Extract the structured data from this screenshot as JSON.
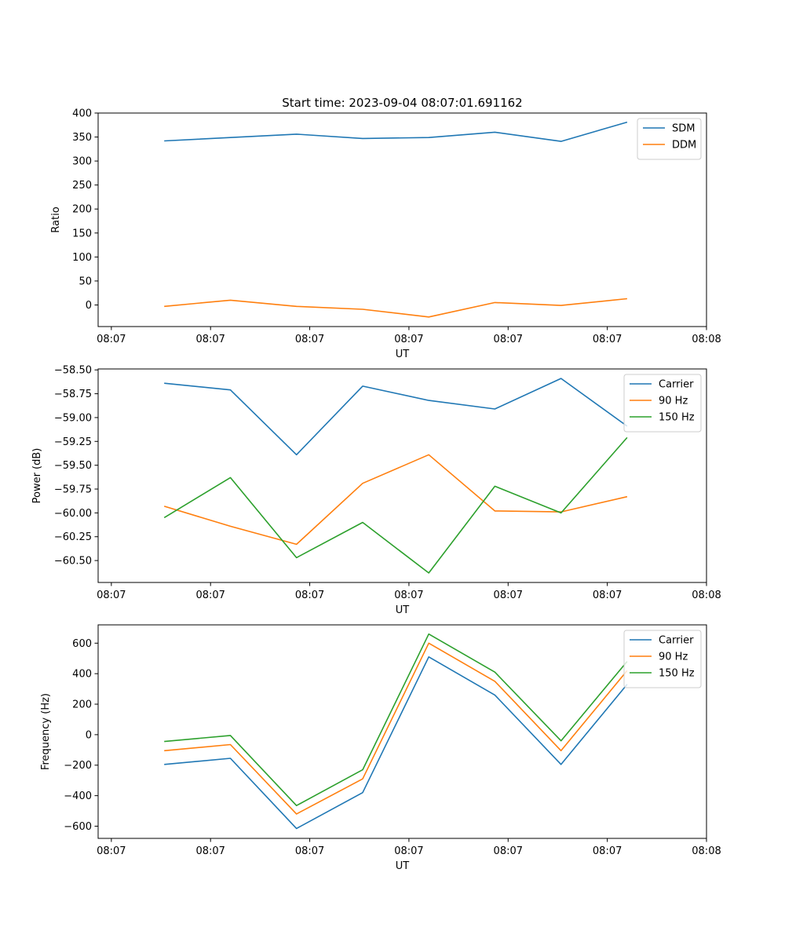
{
  "chart_data": [
    {
      "type": "line",
      "title": "Start time: 2023-09-04 08:07:01.691162",
      "xlabel": "UT",
      "ylabel": "Ratio",
      "xlim": [
        0,
        9.2
      ],
      "x": [
        1,
        2,
        3,
        4,
        5,
        6,
        7,
        8
      ],
      "xticks": [
        0.2,
        1.7,
        3.2,
        4.7,
        6.2,
        7.7,
        9.2
      ],
      "xtick_labels": [
        "08:07",
        "08:07",
        "08:07",
        "08:07",
        "08:07",
        "08:07",
        "08:08"
      ],
      "ylim": [
        -45,
        400
      ],
      "yticks": [
        0,
        50,
        100,
        150,
        200,
        250,
        300,
        350,
        400
      ],
      "ytick_labels": [
        "0",
        "50",
        "100",
        "150",
        "200",
        "250",
        "300",
        "350",
        "400"
      ],
      "legend_position": "upper-right",
      "series": [
        {
          "name": "SDM",
          "color": "#1f77b4",
          "values": [
            342,
            349,
            356,
            347,
            349,
            360,
            341,
            381
          ]
        },
        {
          "name": "DDM",
          "color": "#ff7f0e",
          "values": [
            -3,
            10,
            -3,
            -9,
            -25,
            5,
            -1,
            13
          ]
        }
      ]
    },
    {
      "type": "line",
      "xlabel": "UT",
      "ylabel": "Power (dB)",
      "xlim": [
        0,
        9.2
      ],
      "x": [
        1,
        2,
        3,
        4,
        5,
        6,
        7,
        8
      ],
      "xticks": [
        0.2,
        1.7,
        3.2,
        4.7,
        6.2,
        7.7,
        9.2
      ],
      "xtick_labels": [
        "08:07",
        "08:07",
        "08:07",
        "08:07",
        "08:07",
        "08:07",
        "08:08"
      ],
      "ylim": [
        -60.73,
        -58.49
      ],
      "yticks": [
        -60.5,
        -60.25,
        -60.0,
        -59.75,
        -59.5,
        -59.25,
        -59.0,
        -58.75,
        -58.5
      ],
      "ytick_labels": [
        "−60.50",
        "−60.25",
        "−60.00",
        "−59.75",
        "−59.50",
        "−59.25",
        "−59.00",
        "−58.75",
        "−58.50"
      ],
      "legend_position": "upper-right",
      "series": [
        {
          "name": "Carrier",
          "color": "#1f77b4",
          "values": [
            -58.64,
            -58.71,
            -59.39,
            -58.67,
            -58.82,
            -58.91,
            -58.59,
            -59.09
          ]
        },
        {
          "name": "90 Hz",
          "color": "#ff7f0e",
          "values": [
            -59.93,
            -60.14,
            -60.33,
            -59.69,
            -59.39,
            -59.98,
            -59.99,
            -59.83
          ]
        },
        {
          "name": "150 Hz",
          "color": "#2ca02c",
          "values": [
            -60.05,
            -59.63,
            -60.47,
            -60.1,
            -60.63,
            -59.72,
            -60.0,
            -59.21
          ]
        }
      ]
    },
    {
      "type": "line",
      "xlabel": "UT",
      "ylabel": "Frequency (Hz)",
      "xlim": [
        0,
        9.2
      ],
      "x": [
        1,
        2,
        3,
        4,
        5,
        6,
        7,
        8
      ],
      "xticks": [
        0.2,
        1.7,
        3.2,
        4.7,
        6.2,
        7.7,
        9.2
      ],
      "xtick_labels": [
        "08:07",
        "08:07",
        "08:07",
        "08:07",
        "08:07",
        "08:07",
        "08:08"
      ],
      "ylim": [
        -680,
        720
      ],
      "yticks": [
        -600,
        -400,
        -200,
        0,
        200,
        400,
        600
      ],
      "ytick_labels": [
        "−600",
        "−400",
        "−200",
        "0",
        "200",
        "400",
        "600"
      ],
      "legend_position": "upper-right",
      "series": [
        {
          "name": "Carrier",
          "color": "#1f77b4",
          "values": [
            -195,
            -155,
            -615,
            -380,
            510,
            260,
            -195,
            330
          ]
        },
        {
          "name": "90 Hz",
          "color": "#ff7f0e",
          "values": [
            -105,
            -65,
            -520,
            -290,
            600,
            350,
            -105,
            420
          ]
        },
        {
          "name": "150 Hz",
          "color": "#2ca02c",
          "values": [
            -45,
            -5,
            -465,
            -230,
            660,
            410,
            -40,
            480
          ]
        }
      ]
    }
  ]
}
